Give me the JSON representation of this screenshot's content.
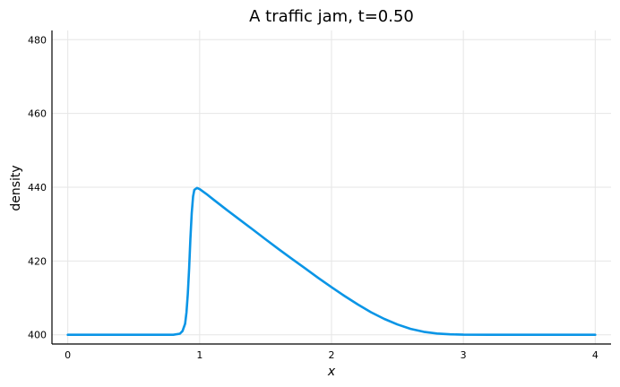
{
  "chart_data": {
    "type": "line",
    "title": "A traffic jam, t=0.50",
    "xlabel": "x",
    "ylabel": "density",
    "xlim": [
      -0.12,
      4.12
    ],
    "ylim": [
      397.5,
      482.5
    ],
    "xticks": [
      0,
      1,
      2,
      3,
      4
    ],
    "yticks": [
      400,
      420,
      440,
      460,
      480
    ],
    "grid": true,
    "legend": "none",
    "series": [
      {
        "color": "#0a95e6",
        "x": [
          0.0,
          0.2,
          0.4,
          0.6,
          0.8,
          0.85,
          0.87,
          0.89,
          0.9,
          0.91,
          0.92,
          0.93,
          0.94,
          0.95,
          0.96,
          0.98,
          1.0,
          1.05,
          1.1,
          1.2,
          1.3,
          1.4,
          1.5,
          1.6,
          1.7,
          1.8,
          1.9,
          2.0,
          2.1,
          2.2,
          2.3,
          2.4,
          2.5,
          2.6,
          2.7,
          2.8,
          2.9,
          3.0,
          3.2,
          3.5,
          4.0
        ],
        "y": [
          400.0,
          400.0,
          400.0,
          400.0,
          400.0,
          400.3,
          401.0,
          403.0,
          406.0,
          411.0,
          418.0,
          426.0,
          433.0,
          437.5,
          439.3,
          439.8,
          439.5,
          438.2,
          436.8,
          434.0,
          431.3,
          428.6,
          425.9,
          423.2,
          420.6,
          418.0,
          415.4,
          412.9,
          410.5,
          408.2,
          406.1,
          404.3,
          402.8,
          401.6,
          400.8,
          400.35,
          400.12,
          400.03,
          400.0,
          400.0,
          400.0
        ]
      }
    ]
  }
}
